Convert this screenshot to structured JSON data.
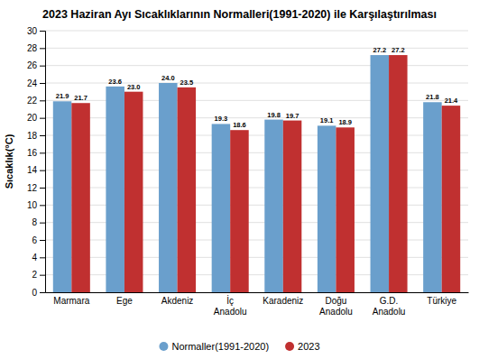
{
  "chart_data": {
    "type": "bar",
    "title": "2023 Haziran Ayı Sıcaklıklarının Normalleri(1991-2020) ile Karşılaştırılması",
    "categories": [
      "Marmara",
      "Ege",
      "Akdeniz",
      "İç\nAnadolu",
      "Karadeniz",
      "Doğu\nAnadolu",
      "G.D.\nAnadolu",
      "Türkiye"
    ],
    "series": [
      {
        "name": "Normaller(1991-2020)",
        "color": "#6A9FCC",
        "values": [
          21.9,
          23.6,
          24.0,
          19.3,
          19.8,
          19.1,
          27.2,
          21.8
        ],
        "value_labels": [
          "21.9",
          "23.6",
          "24.0",
          "19.3",
          "19.8",
          "19.1",
          "27.2",
          "21.8"
        ]
      },
      {
        "name": "2023",
        "color": "#C03030",
        "values": [
          21.7,
          23.0,
          23.5,
          18.6,
          19.7,
          18.9,
          27.2,
          21.4
        ],
        "value_labels": [
          "21.7",
          "23.0",
          "23.5",
          "18.6",
          "19.7",
          "18.9",
          "27.2",
          "21.4"
        ]
      }
    ],
    "ylabel": "Sıcaklık(°C)",
    "ylim": [
      0,
      30
    ],
    "yticks": [
      0,
      2,
      4,
      6,
      8,
      10,
      12,
      14,
      16,
      18,
      20,
      22,
      24,
      26,
      28,
      30
    ],
    "grid": true,
    "legend": "bottom",
    "data_labels": true
  }
}
